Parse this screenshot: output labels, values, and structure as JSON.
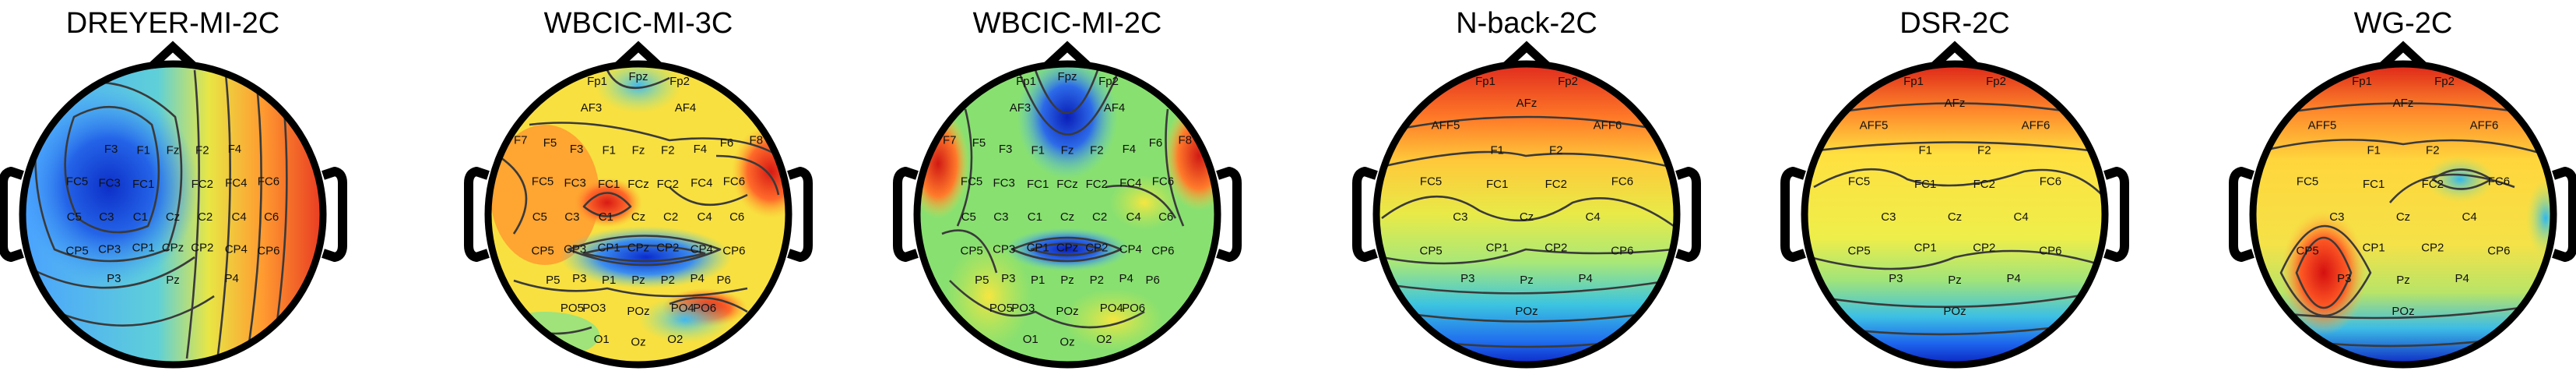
{
  "figure": {
    "panels": [
      {
        "title": "DREYER-MI-2C",
        "colors": {
          "base": "#3f98ff",
          "warm_right": "#f0502c",
          "mid_band": "#e8e645"
        },
        "labels": [
          "Fz",
          "F1",
          "F2",
          "F3",
          "F4",
          "FC5",
          "FC3",
          "FC1",
          "FC2",
          "FC4",
          "FC6",
          "C5",
          "C3",
          "C1",
          "Cz",
          "C2",
          "C4",
          "C6",
          "CP5",
          "CP3",
          "CP1",
          "CPz",
          "CP2",
          "CP4",
          "CP6",
          "P3",
          "Pz",
          "P4"
        ],
        "feature": "Strong negative (blue) region over left sensorimotor cortex; positive (red) along right edge"
      },
      {
        "title": "WBCIC-MI-3C",
        "colors": {
          "base": "#ffdc3c",
          "blue_region": "#1e4ed8",
          "red_region": "#e13420"
        },
        "labels": [
          "Fp1",
          "Fpz",
          "Fp2",
          "AF3",
          "AF4",
          "F7",
          "F5",
          "F3",
          "F1",
          "Fz",
          "F2",
          "F4",
          "F6",
          "F8",
          "FC5",
          "FC3",
          "FC1",
          "FCz",
          "FC2",
          "FC4",
          "FC6",
          "C5",
          "C3",
          "C1",
          "Cz",
          "C2",
          "C4",
          "C6",
          "CP5",
          "CP3",
          "CP1",
          "CPz",
          "CP2",
          "CP4",
          "CP6",
          "P5",
          "P3",
          "P1",
          "Pz",
          "P2",
          "P4",
          "P6",
          "PO5",
          "PO3",
          "POz",
          "PO4",
          "PO6",
          "O1",
          "Oz",
          "O2"
        ],
        "feature": "Central-parietal blue band; patchy red at frontal-left, FC1 and right parietal"
      },
      {
        "title": "WBCIC-MI-2C",
        "colors": {
          "base": "#7fe060",
          "blue_region": "#1a3fd0",
          "red_region": "#e23a22"
        },
        "labels": [
          "Fp1",
          "Fpz",
          "Fp2",
          "AF3",
          "AF4",
          "F7",
          "F5",
          "F3",
          "F1",
          "Fz",
          "F2",
          "F4",
          "F6",
          "F8",
          "FC5",
          "FC3",
          "FC1",
          "FCz",
          "FC2",
          "FC4",
          "FC6",
          "C5",
          "C3",
          "C1",
          "Cz",
          "C2",
          "C4",
          "C6",
          "CP5",
          "CP3",
          "CP1",
          "CPz",
          "CP2",
          "CP4",
          "CP6",
          "P5",
          "P3",
          "P1",
          "Pz",
          "P2",
          "P4",
          "P6",
          "PO5",
          "PO3",
          "POz",
          "PO4",
          "PO6",
          "O1",
          "Oz",
          "O2"
        ],
        "feature": "Deep blue frontal midline and CP1-CPz; red at left/right frontal-temporal edges"
      },
      {
        "title": "N-back-2C",
        "colors": {
          "base": "#ffd23a",
          "top": "#e63020",
          "bottom": "#1a3cd6"
        },
        "labels": [
          "Fp1",
          "Fp2",
          "AFF5",
          "AFz",
          "AFF6",
          "F1",
          "F2",
          "FC5",
          "FC1",
          "FC2",
          "FC6",
          "C3",
          "Cz",
          "C4",
          "CP5",
          "CP1",
          "CP2",
          "CP6",
          "P3",
          "Pz",
          "P4",
          "POz"
        ],
        "feature": "Frontal red, occipital blue, horizontal gradient"
      },
      {
        "title": "DSR-2C",
        "colors": {
          "base": "#ffe84a",
          "top": "#e02a1e",
          "bottom": "#1a3ad6"
        },
        "labels": [
          "Fp1",
          "Fp2",
          "AFF5",
          "AFz",
          "AFF6",
          "F1",
          "F2",
          "FC5",
          "FC1",
          "FC2",
          "FC6",
          "C3",
          "Cz",
          "C4",
          "CP5",
          "CP1",
          "CP2",
          "CP6",
          "P3",
          "Pz",
          "P4",
          "POz"
        ],
        "feature": "Frontal red, occipital blue, yellow central area"
      },
      {
        "title": "WG-2C",
        "colors": {
          "base": "#ffd84a",
          "top": "#e02a1e",
          "left_hot": "#e01a14",
          "bottom": "#1a3ad6"
        },
        "labels": [
          "Fp1",
          "Fp2",
          "AFF5",
          "AFz",
          "AFF6",
          "F1",
          "F2",
          "FC5",
          "FC1",
          "FC2",
          "FC6",
          "C3",
          "Cz",
          "C4",
          "CP5",
          "CP1",
          "CP2",
          "CP6",
          "P3",
          "Pz",
          "P4",
          "POz"
        ],
        "feature": "Red spot left centro-parietal (C3-CP5-P3), blue at FC2 and bottom"
      }
    ]
  }
}
